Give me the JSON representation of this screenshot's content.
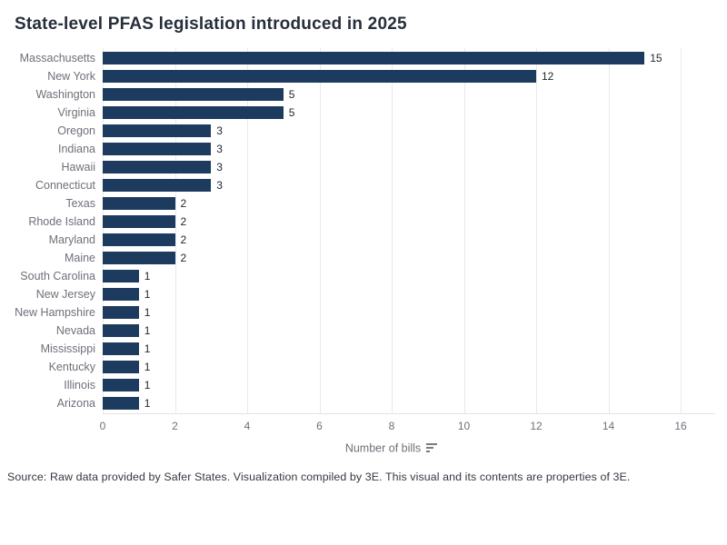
{
  "title": "State-level PFAS legislation introduced in 2025",
  "chart_data": {
    "type": "bar",
    "orientation": "horizontal",
    "title": "State-level PFAS legislation introduced in 2025",
    "categories": [
      "Massachusetts",
      "New York",
      "Washington",
      "Virginia",
      "Oregon",
      "Indiana",
      "Hawaii",
      "Connecticut",
      "Texas",
      "Rhode Island",
      "Maryland",
      "Maine",
      "South Carolina",
      "New Jersey",
      "New Hampshire",
      "Nevada",
      "Mississippi",
      "Kentucky",
      "Illinois",
      "Arizona"
    ],
    "values": [
      15,
      12,
      5,
      5,
      3,
      3,
      3,
      3,
      2,
      2,
      2,
      2,
      1,
      1,
      1,
      1,
      1,
      1,
      1,
      1
    ],
    "xlabel": "Number of bills",
    "ylabel": "",
    "xlim": [
      0,
      16
    ],
    "xticks": [
      0,
      2,
      4,
      6,
      8,
      10,
      12,
      14,
      16
    ],
    "grid": "vertical",
    "legend": "none",
    "sorted": "descending",
    "value_labels_shown": true
  },
  "colors": {
    "bar": "#1c3b5e",
    "title_text": "#262e3a",
    "axis_text": "#6e7079",
    "value_text": "#212731",
    "gridline": "#e8e9ec"
  },
  "icons": {
    "xaxis_icon": "sort-descending-icon"
  },
  "footer": {
    "source": "Source: Raw data provided by Safer States. Visualization compiled by 3E. This visual and its contents are properties of 3E."
  }
}
